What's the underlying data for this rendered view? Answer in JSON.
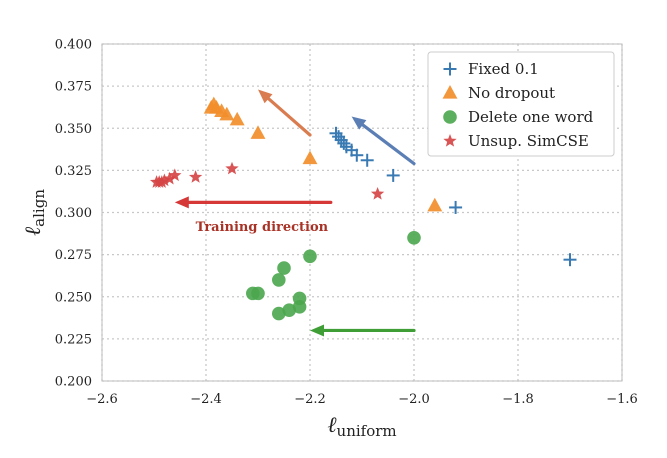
{
  "chart_data": {
    "type": "scatter",
    "xlabel_main": "ℓ",
    "xlabel_sub": "uniform",
    "ylabel_main": "ℓ",
    "ylabel_sub": "align",
    "xlim": [
      -2.6,
      -1.6
    ],
    "ylim": [
      0.2,
      0.4
    ],
    "xticks": [
      -2.6,
      -2.4,
      -2.2,
      -2.0,
      -1.8,
      -1.6
    ],
    "xtick_labels": [
      "−2.6",
      "−2.4",
      "−2.2",
      "−2.0",
      "−1.8",
      "−1.6"
    ],
    "yticks": [
      0.2,
      0.225,
      0.25,
      0.275,
      0.3,
      0.325,
      0.35,
      0.375,
      0.4
    ],
    "ytick_labels": [
      "0.200",
      "0.225",
      "0.250",
      "0.275",
      "0.300",
      "0.325",
      "0.350",
      "0.375",
      "0.400"
    ],
    "grid": true,
    "legend_position": "top-right",
    "series": [
      {
        "name": "Fixed 0.1",
        "marker": "plus",
        "color": "#3a7ab3",
        "points": [
          [
            -1.7,
            0.272
          ],
          [
            -1.92,
            0.303
          ],
          [
            -2.04,
            0.322
          ],
          [
            -2.09,
            0.331
          ],
          [
            -2.11,
            0.334
          ],
          [
            -2.12,
            0.337
          ],
          [
            -2.13,
            0.339
          ],
          [
            -2.135,
            0.341
          ],
          [
            -2.14,
            0.343
          ],
          [
            -2.145,
            0.345
          ],
          [
            -2.15,
            0.347
          ]
        ]
      },
      {
        "name": "No dropout",
        "marker": "triangle",
        "color": "#f28e2b",
        "points": [
          [
            -1.96,
            0.304
          ],
          [
            -2.2,
            0.332
          ],
          [
            -2.3,
            0.347
          ],
          [
            -2.34,
            0.355
          ],
          [
            -2.36,
            0.358
          ],
          [
            -2.37,
            0.36
          ],
          [
            -2.38,
            0.362
          ],
          [
            -2.385,
            0.364
          ],
          [
            -2.39,
            0.362
          ]
        ]
      },
      {
        "name": "Delete one word",
        "marker": "circle",
        "color": "#4aa64c",
        "points": [
          [
            -2.0,
            0.285
          ],
          [
            -2.2,
            0.274
          ],
          [
            -2.25,
            0.267
          ],
          [
            -2.26,
            0.26
          ],
          [
            -2.3,
            0.252
          ],
          [
            -2.31,
            0.252
          ],
          [
            -2.22,
            0.249
          ],
          [
            -2.22,
            0.244
          ],
          [
            -2.24,
            0.242
          ],
          [
            -2.26,
            0.24
          ]
        ]
      },
      {
        "name": "Unsup. SimCSE",
        "marker": "star",
        "color": "#d64545",
        "points": [
          [
            -2.07,
            0.311
          ],
          [
            -2.35,
            0.326
          ],
          [
            -2.42,
            0.321
          ],
          [
            -2.46,
            0.322
          ],
          [
            -2.47,
            0.32
          ],
          [
            -2.48,
            0.319
          ],
          [
            -2.485,
            0.318
          ],
          [
            -2.49,
            0.318
          ],
          [
            -2.495,
            0.318
          ]
        ]
      }
    ],
    "arrows": [
      {
        "color": "#d97c4f",
        "from": [
          -2.2,
          0.346
        ],
        "to": [
          -2.3,
          0.373
        ]
      },
      {
        "color": "#5b7fb5",
        "from": [
          -2.0,
          0.329
        ],
        "to": [
          -2.12,
          0.357
        ]
      },
      {
        "color": "#d63838",
        "from": [
          -2.16,
          0.306
        ],
        "to": [
          -2.46,
          0.306
        ]
      },
      {
        "color": "#3f9e35",
        "from": [
          -2.0,
          0.23
        ],
        "to": [
          -2.2,
          0.23
        ]
      }
    ],
    "annotation": {
      "text": "Training direction",
      "color": "#a93226",
      "x": -2.42,
      "y": 0.289
    }
  }
}
